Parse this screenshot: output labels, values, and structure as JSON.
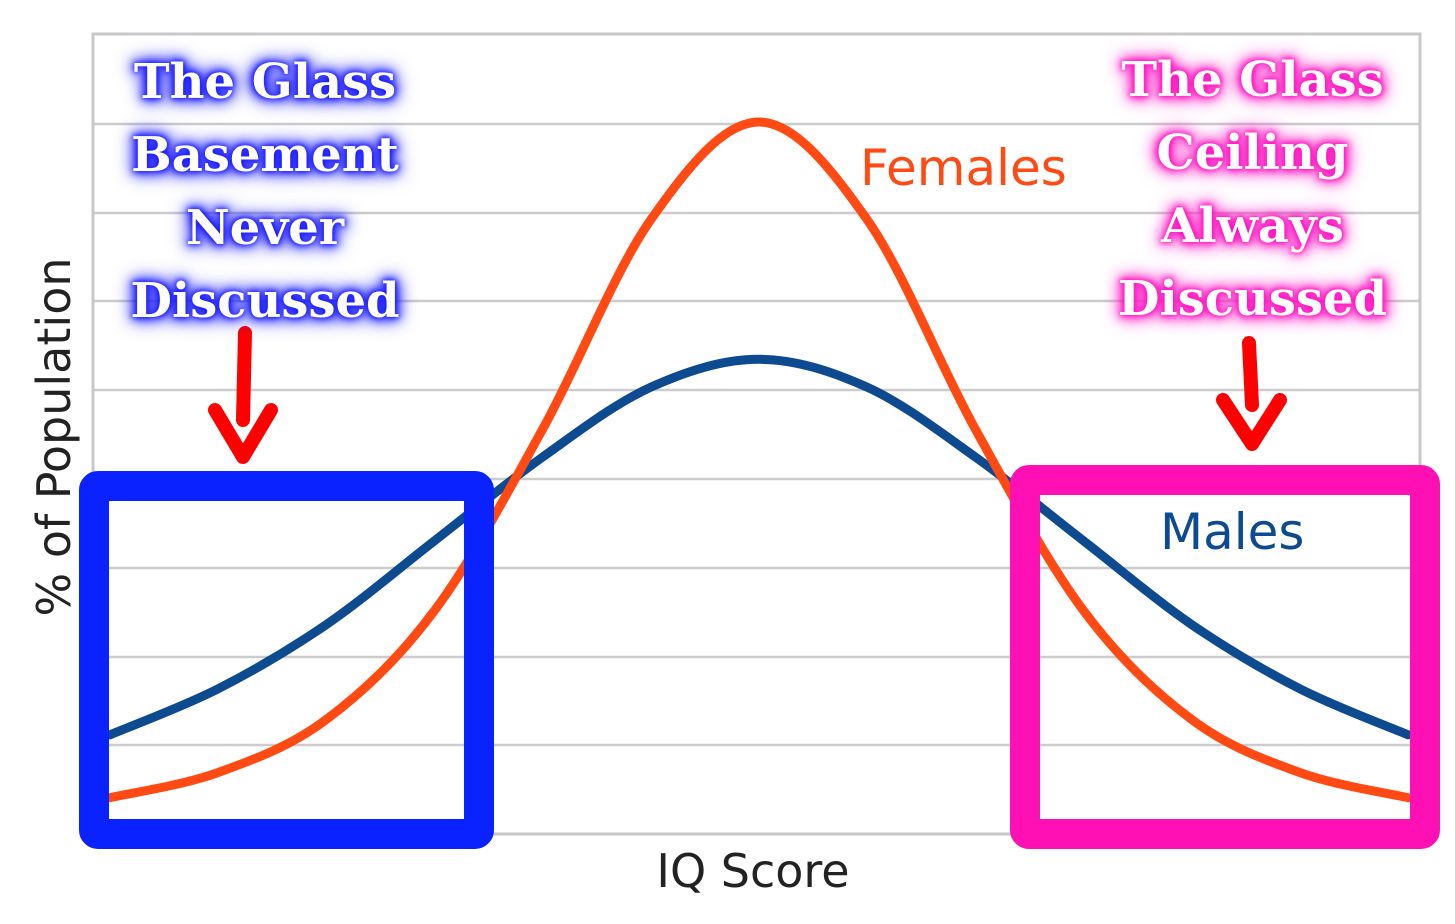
{
  "chart_data": {
    "type": "line",
    "xlabel": "IQ Score",
    "ylabel": "% of Population",
    "x": [
      -3.0,
      -2.5,
      -2.0,
      -1.5,
      -1.0,
      -0.5,
      0.0,
      0.5,
      1.0,
      1.5,
      2.0,
      2.5,
      3.0
    ],
    "series": [
      {
        "name": "Females",
        "color": "#ff4a14",
        "values": [
          0.016,
          0.034,
          0.072,
          0.15,
          0.28,
          0.43,
          0.5,
          0.43,
          0.28,
          0.15,
          0.072,
          0.034,
          0.016
        ]
      },
      {
        "name": "Males",
        "color": "#0d4a8f",
        "values": [
          0.061,
          0.094,
          0.14,
          0.2,
          0.26,
          0.31,
          0.33,
          0.31,
          0.26,
          0.2,
          0.14,
          0.094,
          0.061
        ]
      }
    ],
    "grid": true,
    "legend": "inline labels"
  },
  "annotations": {
    "left_box": {
      "color": "#0a22ff",
      "lines": [
        "The Glass",
        "Basement",
        "Never",
        "Discussed"
      ]
    },
    "right_box": {
      "color": "#ff10b4",
      "lines": [
        "The Glass",
        "Ceiling",
        "Always",
        "Discussed"
      ]
    },
    "arrow_color": "#ff0000"
  }
}
